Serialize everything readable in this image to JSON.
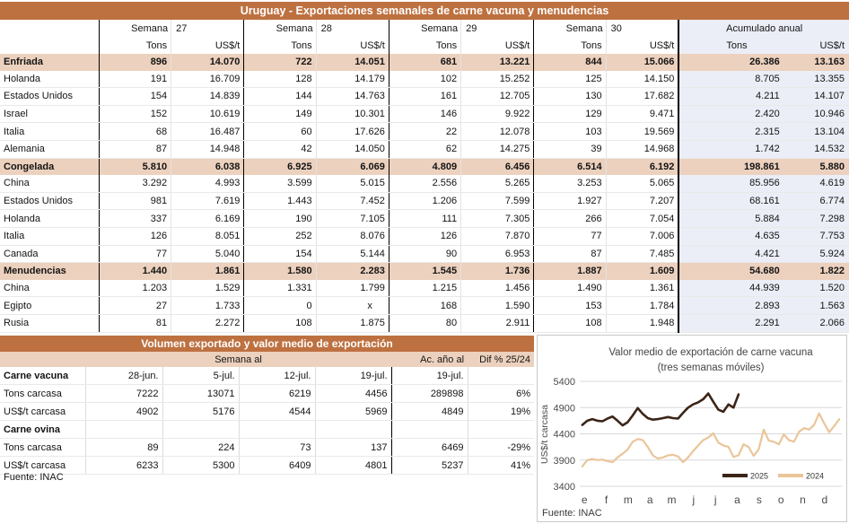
{
  "top_table": {
    "title": "Uruguay - Exportaciones semanales de carne vacuna y menudencias",
    "week_label": "Semana",
    "weeks": [
      "27",
      "28",
      "29",
      "30"
    ],
    "accum_label": "Acumulado anual",
    "unit_tons": "Tons",
    "unit_price": "US$/t",
    "rows": [
      {
        "label": "Enfriada",
        "type": "section",
        "values": [
          "896",
          "14.070",
          "722",
          "14.051",
          "681",
          "13.221",
          "844",
          "15.066",
          "26.386",
          "13.163"
        ]
      },
      {
        "label": "Holanda",
        "type": "country",
        "values": [
          "191",
          "16.709",
          "128",
          "14.179",
          "102",
          "15.252",
          "125",
          "14.150",
          "8.705",
          "13.355"
        ]
      },
      {
        "label": "Estados Unidos",
        "type": "country",
        "values": [
          "154",
          "14.839",
          "144",
          "14.763",
          "161",
          "12.705",
          "130",
          "17.682",
          "4.211",
          "14.107"
        ]
      },
      {
        "label": "Israel",
        "type": "country",
        "values": [
          "152",
          "10.619",
          "149",
          "10.301",
          "146",
          "9.922",
          "129",
          "9.471",
          "2.420",
          "10.946"
        ]
      },
      {
        "label": "Italia",
        "type": "country",
        "values": [
          "68",
          "16.487",
          "60",
          "17.626",
          "22",
          "12.078",
          "103",
          "19.569",
          "2.315",
          "13.104"
        ]
      },
      {
        "label": "Alemania",
        "type": "country",
        "values": [
          "87",
          "14.948",
          "42",
          "14.050",
          "62",
          "14.275",
          "39",
          "14.968",
          "1.742",
          "14.532"
        ]
      },
      {
        "label": "Congelada",
        "type": "section",
        "values": [
          "5.810",
          "6.038",
          "6.925",
          "6.069",
          "4.809",
          "6.456",
          "6.514",
          "6.192",
          "198.861",
          "5.880"
        ]
      },
      {
        "label": "China",
        "type": "country",
        "values": [
          "3.292",
          "4.993",
          "3.599",
          "5.015",
          "2.556",
          "5.265",
          "3.253",
          "5.065",
          "85.956",
          "4.619"
        ]
      },
      {
        "label": "Estados Unidos",
        "type": "country",
        "values": [
          "981",
          "7.619",
          "1.443",
          "7.452",
          "1.206",
          "7.599",
          "1.927",
          "7.207",
          "68.161",
          "6.774"
        ]
      },
      {
        "label": "Holanda",
        "type": "country",
        "values": [
          "337",
          "6.169",
          "190",
          "7.105",
          "111",
          "7.305",
          "266",
          "7.054",
          "5.884",
          "7.298"
        ]
      },
      {
        "label": "Italia",
        "type": "country",
        "values": [
          "126",
          "8.051",
          "252",
          "8.076",
          "126",
          "7.870",
          "77",
          "7.006",
          "4.635",
          "7.753"
        ]
      },
      {
        "label": "Canada",
        "type": "country",
        "values": [
          "77",
          "5.040",
          "154",
          "5.144",
          "90",
          "6.953",
          "87",
          "7.485",
          "4.421",
          "5.924"
        ]
      },
      {
        "label": "Menudencias",
        "type": "section",
        "values": [
          "1.440",
          "1.861",
          "1.580",
          "2.283",
          "1.545",
          "1.736",
          "1.887",
          "1.609",
          "54.680",
          "1.822"
        ]
      },
      {
        "label": "China",
        "type": "country",
        "values": [
          "1.203",
          "1.529",
          "1.331",
          "1.799",
          "1.215",
          "1.456",
          "1.490",
          "1.361",
          "44.939",
          "1.520"
        ]
      },
      {
        "label": "Egipto",
        "type": "country",
        "values": [
          "27",
          "1.733",
          "0",
          "x",
          "168",
          "1.590",
          "153",
          "1.784",
          "2.893",
          "1.563"
        ]
      },
      {
        "label": "Rusia",
        "type": "country",
        "values": [
          "81",
          "2.272",
          "108",
          "1.875",
          "80",
          "2.911",
          "108",
          "1.948",
          "2.291",
          "2.066"
        ]
      }
    ]
  },
  "bottom_table": {
    "title": "Volumen exportado y valor medio de exportación",
    "group_header": "Semana al",
    "accum_header": "Ac. año al",
    "diff_header": "Dif % 25/24",
    "rows": [
      {
        "label": "Carne vacuna",
        "type": "group",
        "values": [
          "28-jun.",
          "5-jul.",
          "12-jul.",
          "19-jul.",
          "19-jul.",
          ""
        ]
      },
      {
        "label": "Tons carcasa",
        "type": "data",
        "values": [
          "7222",
          "13071",
          "6219",
          "4456",
          "289898",
          "6%"
        ]
      },
      {
        "label": "US$/t carcasa",
        "type": "data",
        "values": [
          "4902",
          "5176",
          "4544",
          "5969",
          "4849",
          "19%"
        ]
      },
      {
        "label": "Carne ovina",
        "type": "group",
        "values": [
          "",
          "",
          "",
          "",
          "",
          ""
        ]
      },
      {
        "label": "Tons carcasa",
        "type": "data",
        "values": [
          "89",
          "224",
          "73",
          "137",
          "6469",
          "-29%"
        ]
      },
      {
        "label": "US$/t carcasa",
        "type": "data",
        "values": [
          "6233",
          "5300",
          "6409",
          "4801",
          "5237",
          "41%"
        ]
      }
    ],
    "source": "Fuente: INAC"
  },
  "chart_data": {
    "type": "line",
    "title": "Valor medio de exportación de carne vacuna",
    "subtitle": "(tres semanas móviles)",
    "ylabel": "US$/t carcasa",
    "ylim": [
      3400,
      5400
    ],
    "yticks": [
      5400,
      4900,
      4400,
      3900,
      3400
    ],
    "x_months": [
      "e",
      "f",
      "m",
      "a",
      "m",
      "j",
      "j",
      "a",
      "s",
      "o",
      "n",
      "d"
    ],
    "x_unit": "week-of-year",
    "weeks_per_year": 52,
    "grid": true,
    "legend_position": "bottom-right-inside",
    "source": "Fuente: INAC",
    "series": [
      {
        "name": "2025",
        "color": "#3B2417",
        "line_width": 2.6,
        "values": [
          4570,
          4650,
          4680,
          4650,
          4640,
          4690,
          4730,
          4650,
          4560,
          4620,
          4750,
          4890,
          4780,
          4700,
          4670,
          4680,
          4700,
          4720,
          4700,
          4690,
          4800,
          4900,
          4960,
          5000,
          5060,
          5170,
          5010,
          4860,
          4820,
          4960,
          4900,
          5150
        ]
      },
      {
        "name": "2024",
        "color": "#EAC59A",
        "line_width": 2.2,
        "values": [
          3780,
          3900,
          3920,
          3900,
          3910,
          3880,
          3860,
          3950,
          4020,
          4100,
          4250,
          4300,
          4280,
          4150,
          3990,
          3930,
          3950,
          3990,
          4000,
          3970,
          3860,
          3950,
          4070,
          4180,
          4280,
          4330,
          4410,
          4230,
          4180,
          4150,
          3960,
          3990,
          4200,
          4150,
          3980,
          4100,
          4480,
          4270,
          4250,
          4200,
          4390,
          4280,
          4250,
          4440,
          4510,
          4480,
          4570,
          4790,
          4600,
          4430,
          4550,
          4680
        ]
      }
    ],
    "colors": {
      "grid": "#d9d9d9",
      "text": "#4a4a4a"
    }
  }
}
